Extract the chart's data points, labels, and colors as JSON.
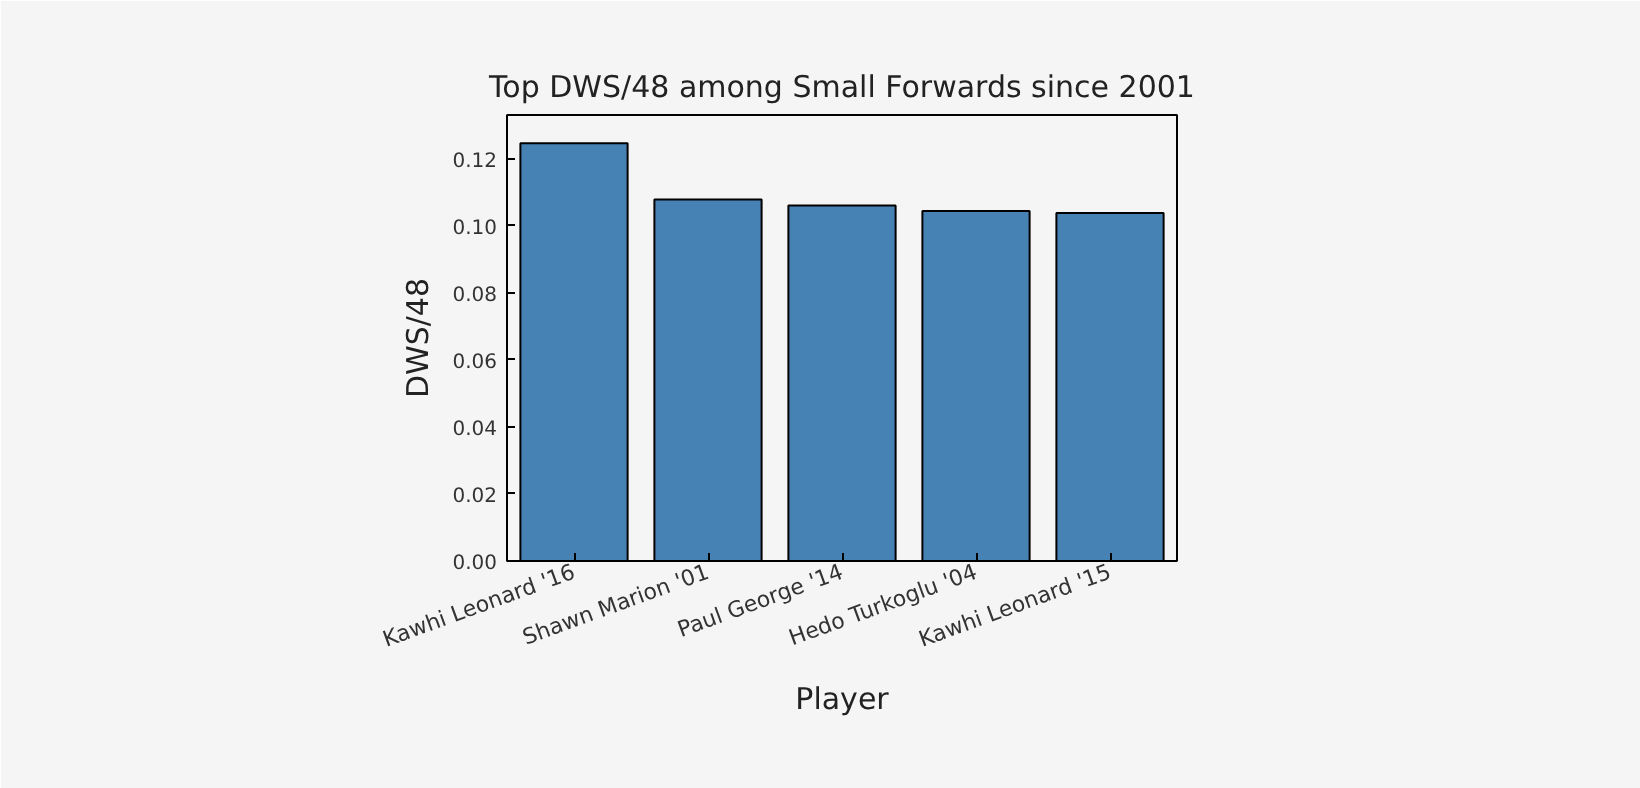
{
  "chart_data": {
    "type": "bar",
    "title": "Top DWS/48 among Small Forwards since 2001",
    "xlabel": "Player",
    "ylabel": "DWS/48",
    "categories": [
      "Kawhi Leonard '16",
      "Shawn Marion '01",
      "Paul George '14",
      "Hedo Turkoglu '04",
      "Kawhi Leonard '15"
    ],
    "values": [
      0.1246,
      0.1078,
      0.106,
      0.1044,
      0.1038
    ],
    "color": "#4682b4",
    "ylim": [
      0,
      0.133
    ],
    "yticks": [
      {
        "value": 0,
        "label": "0.00"
      },
      {
        "value": 0.02,
        "label": "0.02"
      },
      {
        "value": 0.04,
        "label": "0.04"
      },
      {
        "value": 0.06,
        "label": "0.06"
      },
      {
        "value": 0.08,
        "label": "0.08"
      },
      {
        "value": 0.1,
        "label": "0.10"
      },
      {
        "value": 0.12,
        "label": "0.12"
      }
    ],
    "grid": false
  }
}
